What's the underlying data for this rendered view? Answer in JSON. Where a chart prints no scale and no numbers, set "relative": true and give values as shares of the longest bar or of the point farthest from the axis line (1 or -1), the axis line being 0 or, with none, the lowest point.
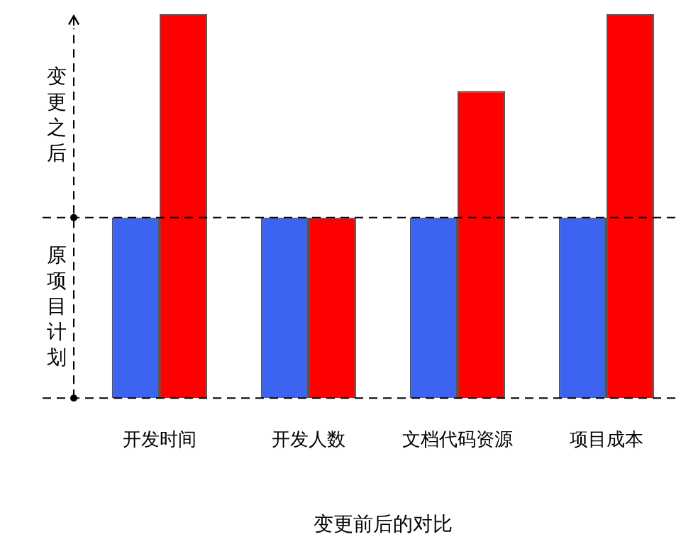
{
  "chart_data": {
    "type": "bar",
    "relative": true,
    "xlabel": "变更前后的对比",
    "categories": [
      "开发时间",
      "开发人数",
      "文档代码资源",
      "项目成本"
    ],
    "series": [
      {
        "color": "#3c64f0",
        "values": [
          0.47,
          0.47,
          0.47,
          0.47
        ]
      },
      {
        "color": "#ff0000",
        "values": [
          1,
          0.47,
          0.8,
          1
        ]
      }
    ],
    "ref_lines": [
      {
        "axis": "y",
        "value": 0.47,
        "line_style": "dashed"
      }
    ],
    "annotations": [
      "变更之后",
      "原项目计划"
    ],
    "grid": false,
    "legend": false
  }
}
